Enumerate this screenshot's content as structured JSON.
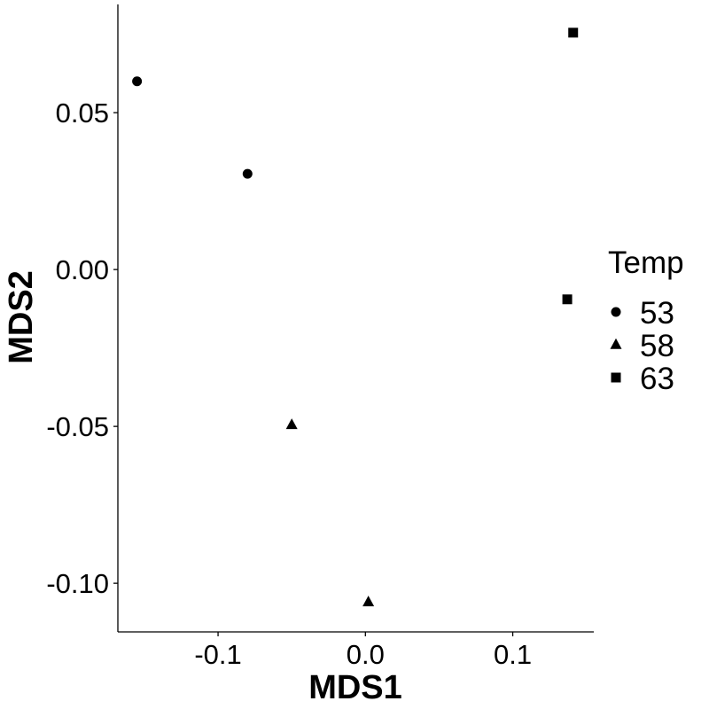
{
  "chart_data": {
    "type": "scatter",
    "xlabel": "MDS1",
    "ylabel": "MDS2",
    "xlim": [
      -0.168,
      0.155
    ],
    "ylim": [
      -0.1155,
      0.0845
    ],
    "x_ticks": [
      {
        "value": -0.1,
        "label": "-0.1"
      },
      {
        "value": 0.0,
        "label": "0.0"
      },
      {
        "value": 0.1,
        "label": "0.1"
      }
    ],
    "y_ticks": [
      {
        "value": 0.05,
        "label": "0.05"
      },
      {
        "value": 0.0,
        "label": "0.00"
      },
      {
        "value": -0.05,
        "label": "-0.05"
      },
      {
        "value": -0.1,
        "label": "-0.10"
      }
    ],
    "grid": false,
    "legend": {
      "title": "Temp",
      "position": "right",
      "entries": [
        {
          "label": "53",
          "shape": "circle"
        },
        {
          "label": "58",
          "shape": "triangle"
        },
        {
          "label": "63",
          "shape": "square"
        }
      ]
    },
    "series": [
      {
        "name": "53",
        "shape": "circle",
        "points": [
          {
            "x": -0.155,
            "y": 0.06
          },
          {
            "x": -0.08,
            "y": 0.0305
          }
        ]
      },
      {
        "name": "58",
        "shape": "triangle",
        "points": [
          {
            "x": -0.05,
            "y": -0.0495
          },
          {
            "x": 0.002,
            "y": -0.106
          }
        ]
      },
      {
        "name": "63",
        "shape": "square",
        "points": [
          {
            "x": 0.141,
            "y": 0.0755
          },
          {
            "x": 0.137,
            "y": -0.0095
          }
        ]
      }
    ],
    "colors": {
      "marker": "#000000",
      "axis": "#000000",
      "background": "#ffffff"
    }
  }
}
